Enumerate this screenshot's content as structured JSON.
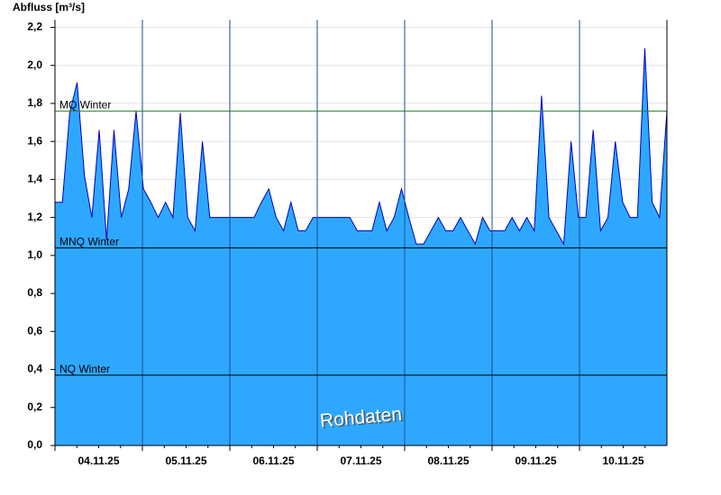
{
  "chart_data": {
    "type": "area",
    "y_label": "Abfluss [m³/s]",
    "watermark": "Rohdaten",
    "categories": [
      "04.11.25",
      "05.11.25",
      "06.11.25",
      "07.11.25",
      "08.11.25",
      "09.11.25",
      "10.11.25"
    ],
    "series": [
      {
        "fill": "#2ea8ff",
        "color": "#0000c0",
        "values": [
          [
            1.28,
            1.28,
            1.75,
            1.91,
            1.42,
            1.2,
            1.66,
            1.08,
            1.66,
            1.2,
            1.35,
            1.76
          ],
          [
            1.35,
            1.28,
            1.2,
            1.28,
            1.2,
            1.75,
            1.2,
            1.13,
            1.6,
            1.2,
            1.2,
            1.2
          ],
          [
            1.2,
            1.2,
            1.2,
            1.2,
            1.28,
            1.35,
            1.2,
            1.13,
            1.28,
            1.13,
            1.13,
            1.2
          ],
          [
            1.2,
            1.2,
            1.2,
            1.2,
            1.2,
            1.13,
            1.13,
            1.13,
            1.28,
            1.13,
            1.2,
            1.35
          ],
          [
            1.2,
            1.06,
            1.06,
            1.13,
            1.2,
            1.13,
            1.13,
            1.2,
            1.13,
            1.06,
            1.2,
            1.13
          ],
          [
            1.13,
            1.13,
            1.2,
            1.13,
            1.2,
            1.13,
            1.84,
            1.2,
            1.13,
            1.06,
            1.6,
            1.2
          ],
          [
            1.2,
            1.66,
            1.13,
            1.2,
            1.6,
            1.28,
            1.2,
            1.2,
            2.09,
            1.28,
            1.2,
            1.76
          ]
        ]
      }
    ],
    "reference_lines": [
      {
        "label": "MQ Winter",
        "value": 1.76,
        "color": "#2e7d32"
      },
      {
        "label": "MNQ Winter",
        "value": 1.04,
        "color": "#000000"
      },
      {
        "label": "NQ Winter",
        "value": 0.37,
        "color": "#000000"
      }
    ],
    "ylim": [
      0,
      2.24
    ],
    "yticks": [
      {
        "value": 0,
        "label": "0,0"
      },
      {
        "value": 0.2,
        "label": "0,2"
      },
      {
        "value": 0.4,
        "label": "0,4"
      },
      {
        "value": 0.6,
        "label": "0,6"
      },
      {
        "value": 0.8,
        "label": "0,8"
      },
      {
        "value": 1.0,
        "label": "1,0"
      },
      {
        "value": 1.2,
        "label": "1,2"
      },
      {
        "value": 1.4,
        "label": "1,4"
      },
      {
        "value": 1.6,
        "label": "1,6"
      },
      {
        "value": 1.8,
        "label": "1,8"
      },
      {
        "value": 2.0,
        "label": "2,0"
      },
      {
        "value": 2.2,
        "label": "2,2"
      }
    ],
    "grid": true
  }
}
